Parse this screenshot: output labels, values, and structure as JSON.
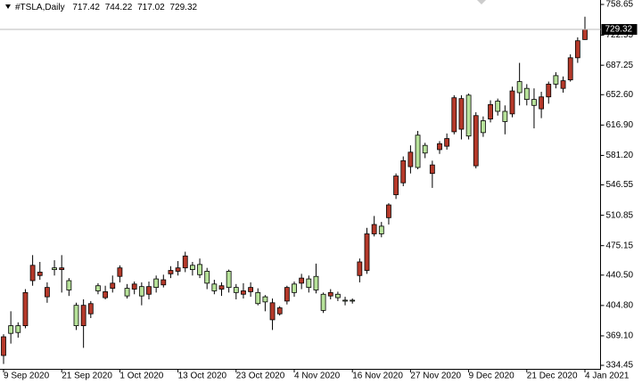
{
  "chart_data": {
    "type": "candlestick",
    "title": "#TSLA,Daily",
    "categories": [
      "9 Sep 2020",
      null,
      null,
      null,
      null,
      null,
      null,
      null,
      "21 Sep 2020",
      null,
      null,
      null,
      null,
      null,
      null,
      null,
      "1 Oct 2020",
      null,
      null,
      null,
      null,
      null,
      null,
      null,
      "13 Oct 2020",
      null,
      null,
      null,
      null,
      null,
      null,
      null,
      "23 Oct 2020",
      null,
      null,
      null,
      null,
      null,
      null,
      null,
      "4 Nov 2020",
      null,
      null,
      null,
      null,
      null,
      null,
      null,
      "16 Nov 2020",
      null,
      null,
      null,
      null,
      null,
      null,
      null,
      "27 Nov 2020",
      null,
      null,
      null,
      null,
      null,
      null,
      null,
      "9 Dec 2020",
      null,
      null,
      null,
      null,
      null,
      null,
      null,
      "21 Dec 2020",
      null,
      null,
      null,
      null,
      null,
      null,
      null,
      "4 Jan 2021"
    ],
    "open": [
      346,
      381,
      381,
      381,
      434,
      440,
      415,
      449,
      447,
      434,
      405,
      381,
      395,
      428,
      414,
      425,
      439,
      425,
      424,
      427,
      418,
      436,
      429,
      442,
      445,
      449,
      452,
      453,
      445,
      430,
      424,
      445,
      426,
      418,
      421,
      420,
      415,
      388,
      395,
      410,
      430,
      431,
      436,
      439,
      418,
      416,
      418,
      411,
      411,
      440,
      446,
      489,
      498,
      508,
      535,
      549,
      568,
      605,
      593,
      560,
      588,
      592,
      609,
      612,
      652,
      569,
      622,
      624,
      645,
      633,
      630,
      668,
      660,
      647,
      636,
      650,
      675,
      660,
      670,
      696,
      717.42
    ],
    "high": [
      371,
      398,
      385,
      424,
      464,
      456,
      432,
      458,
      464,
      437,
      408,
      412,
      410,
      431,
      428,
      440,
      452,
      430,
      433,
      432,
      433,
      440,
      441,
      451,
      457,
      468,
      456,
      460,
      449,
      435,
      432,
      447,
      430,
      431,
      432,
      425,
      417,
      413,
      404,
      428,
      433,
      442,
      440,
      454,
      420,
      424,
      421,
      415,
      413,
      460,
      496,
      510,
      503,
      525,
      560,
      580,
      593,
      610,
      596,
      575,
      598,
      607,
      652,
      652,
      654,
      632,
      627,
      646,
      648,
      640,
      662,
      690,
      665,
      660,
      656,
      668,
      679,
      674,
      700,
      720,
      744.22
    ],
    "low": [
      336,
      360,
      367,
      378,
      428,
      435,
      408,
      440,
      420,
      416,
      376,
      355,
      390,
      418,
      412,
      420,
      432,
      413,
      418,
      405,
      412,
      420,
      426,
      437,
      440,
      444,
      440,
      437,
      424,
      418,
      416,
      420,
      412,
      413,
      415,
      405,
      398,
      376,
      393,
      406,
      415,
      424,
      420,
      419,
      396,
      412,
      410,
      405,
      407,
      432,
      442,
      486,
      485,
      500,
      530,
      545,
      560,
      565,
      578,
      543,
      583,
      588,
      606,
      600,
      600,
      566,
      603,
      620,
      628,
      606,
      626,
      640,
      640,
      613,
      625,
      642,
      660,
      655,
      668,
      690,
      717.02
    ],
    "close": [
      368,
      372,
      373,
      420,
      452,
      444,
      426,
      447,
      449,
      423,
      381,
      405,
      407,
      422,
      421,
      431,
      449,
      416,
      430,
      416,
      427,
      426,
      435,
      446,
      449,
      463,
      447,
      441,
      431,
      422,
      428,
      426,
      420,
      422,
      426,
      407,
      409,
      408,
      402,
      426,
      420,
      437,
      426,
      423,
      399,
      420,
      414,
      410,
      410,
      456,
      489,
      500,
      489,
      523,
      557,
      575,
      585,
      567,
      584,
      570,
      595,
      601,
      649,
      648,
      604,
      628,
      608,
      641,
      633,
      621,
      657,
      655,
      647,
      640,
      650,
      665,
      665,
      669,
      696,
      716,
      729.32
    ],
    "up_color": "#b5392a",
    "down_color": "#b7e29a",
    "ylim": [
      330.3,
      763.9
    ],
    "yticks": [
      {
        "value": 758.65,
        "label": "758.65"
      },
      {
        "value": 722.55,
        "label": "722.55"
      },
      {
        "value": 687.25,
        "label": "687.25"
      },
      {
        "value": 652.6,
        "label": "652.60"
      },
      {
        "value": 616.9,
        "label": "616.90"
      },
      {
        "value": 581.2,
        "label": "581.20"
      },
      {
        "value": 546.55,
        "label": "546.55"
      },
      {
        "value": 510.85,
        "label": "510.85"
      },
      {
        "value": 475.15,
        "label": "475.15"
      },
      {
        "value": 440.5,
        "label": "440.50"
      },
      {
        "value": 404.8,
        "label": "404.80"
      },
      {
        "value": 369.1,
        "label": "369.10"
      },
      {
        "value": 334.45,
        "label": "334.45"
      }
    ]
  }
}
